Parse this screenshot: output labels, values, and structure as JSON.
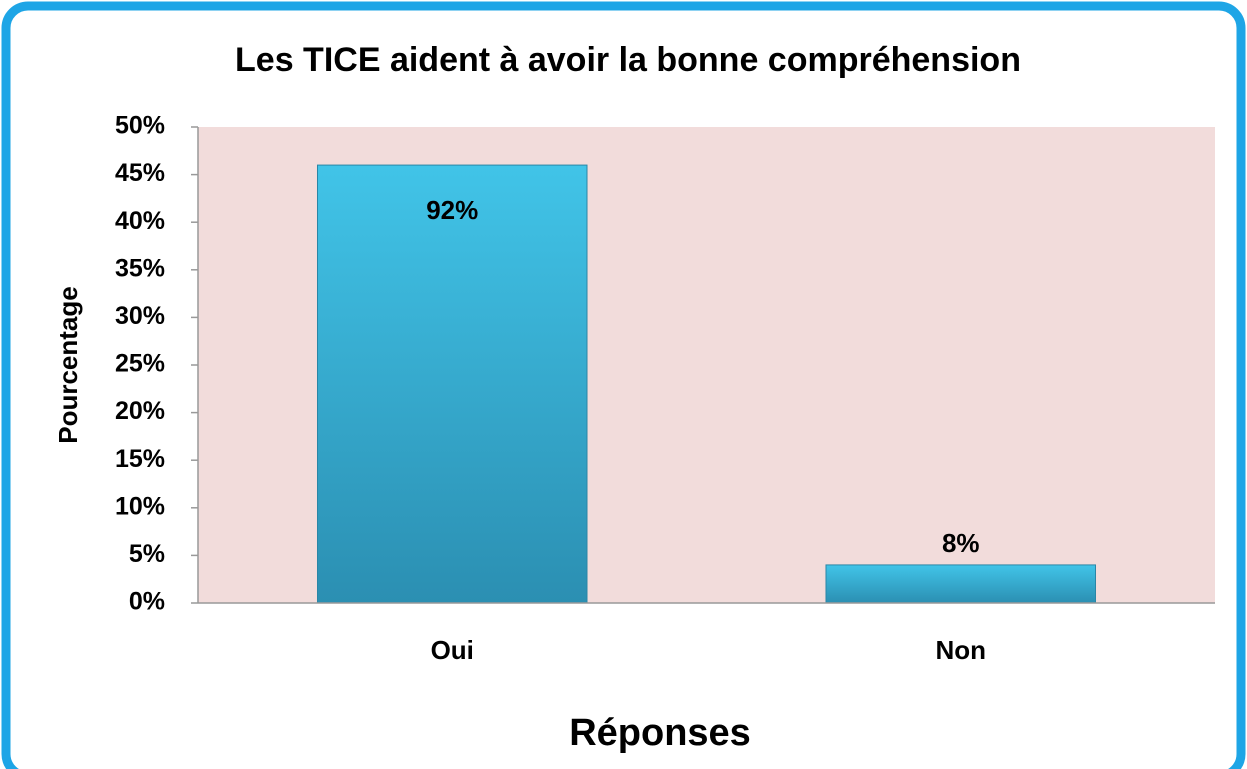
{
  "chart_data": {
    "type": "bar",
    "title": "Les TICE aident à avoir la bonne compréhension",
    "x_label": "Réponses",
    "y_label": "Pourcentage",
    "categories": [
      "Oui",
      "Non"
    ],
    "values": [
      46,
      4
    ],
    "value_labels": [
      "92%",
      "8%"
    ],
    "color": "#36b3d8",
    "plot_background": "#f2dcdb",
    "ylim": [
      0,
      50
    ],
    "yticks": [
      {
        "value": 0,
        "label": "0%"
      },
      {
        "value": 5,
        "label": "5%"
      },
      {
        "value": 10,
        "label": "10%"
      },
      {
        "value": 15,
        "label": "15%"
      },
      {
        "value": 20,
        "label": "20%"
      },
      {
        "value": 25,
        "label": "25%"
      },
      {
        "value": 30,
        "label": "30%"
      },
      {
        "value": 35,
        "label": "35%"
      },
      {
        "value": 40,
        "label": "40%"
      },
      {
        "value": 45,
        "label": "45%"
      },
      {
        "value": 50,
        "label": "50%"
      }
    ],
    "grid": false
  }
}
